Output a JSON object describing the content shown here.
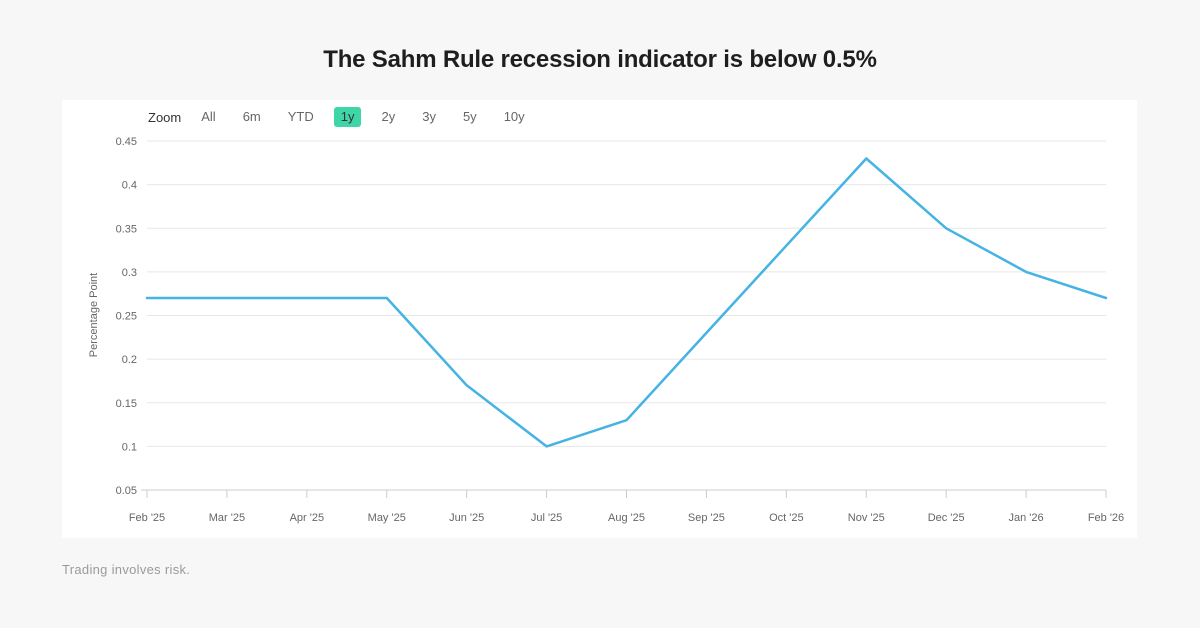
{
  "toolbar": {
    "label": "Zoom",
    "buttons": [
      "All",
      "6m",
      "YTD",
      "1y",
      "2y",
      "3y",
      "5y",
      "10y"
    ],
    "active": "1y",
    "active_bg": "#3fd6a7"
  },
  "chart_data": {
    "type": "line",
    "title": "The Sahm Rule recession indicator is below 0.5%",
    "x": [
      "Feb '25",
      "Mar '25",
      "Apr '25",
      "May '25",
      "Jun '25",
      "Jul '25",
      "Aug '25",
      "Sep '25",
      "Oct '25",
      "Nov '25",
      "Dec '25",
      "Jan '26",
      "Feb '26"
    ],
    "values": [
      0.27,
      0.27,
      0.27,
      0.27,
      0.17,
      0.1,
      0.13,
      0.23,
      0.33,
      0.43,
      0.35,
      0.3,
      0.27
    ],
    "xlabel": "",
    "ylabel": "Percentage Point",
    "ylim": [
      0.05,
      0.45
    ],
    "ytick_step": 0.05,
    "grid": true,
    "legend": false,
    "line_color": "#45b3e4",
    "grid_color": "#e7e7e7",
    "axis_color": "#cccccc",
    "label_color": "#666666"
  },
  "footer": {
    "disclaimer": "Trading involves risk."
  }
}
